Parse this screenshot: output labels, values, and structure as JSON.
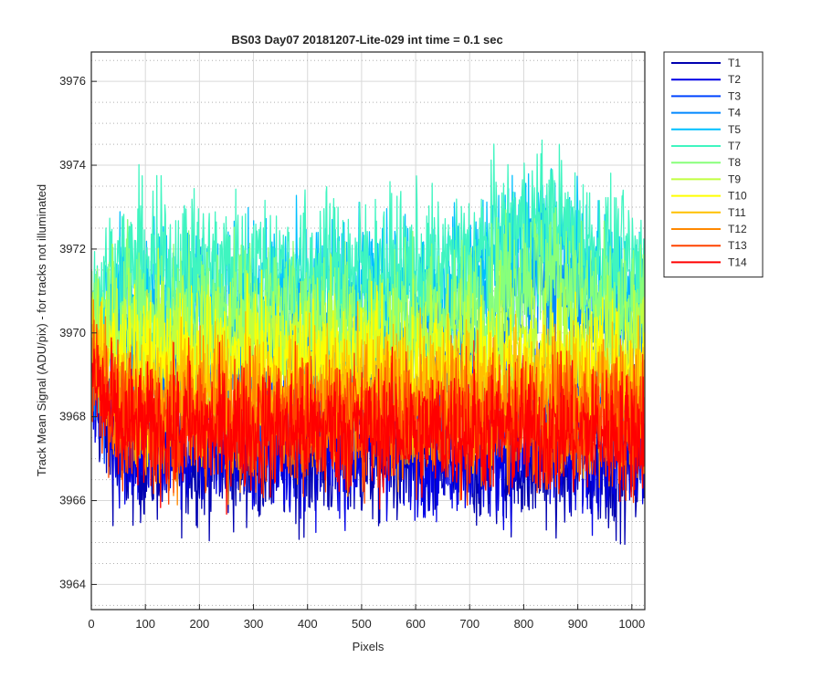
{
  "chart_data": {
    "type": "line",
    "title": "BS03 Day07 20181207-Lite-029 int time = 0.1 sec",
    "xlabel": "Pixels",
    "ylabel": "Track Mean Signal (ADU/pix) - for tracks not illuminated",
    "xlim": [
      0,
      1024
    ],
    "ylim": [
      3963.4,
      3976.7
    ],
    "x_ticks": [
      "0",
      "100",
      "200",
      "300",
      "400",
      "500",
      "600",
      "700",
      "800",
      "900",
      "1000"
    ],
    "x_tick_values": [
      0,
      100,
      200,
      300,
      400,
      500,
      600,
      700,
      800,
      900,
      1000
    ],
    "y_ticks": [
      "3964",
      "3966",
      "3968",
      "3970",
      "3972",
      "3974",
      "3976"
    ],
    "y_tick_values": [
      3964,
      3966,
      3968,
      3970,
      3972,
      3974,
      3976
    ],
    "grid": true,
    "legend_position": "outside-top-right",
    "samples_per_series": 1024,
    "series": [
      {
        "name": "T1",
        "color": "#0000b0",
        "start": 3968.6,
        "mid": 3967.0,
        "end": 3966.8,
        "noise": 0.75
      },
      {
        "name": "T2",
        "color": "#0000e6",
        "start": 3969.0,
        "mid": 3967.3,
        "end": 3967.0,
        "noise": 0.75
      },
      {
        "name": "T3",
        "color": "#0044ff",
        "start": 3969.4,
        "mid": 3968.6,
        "end": 3968.8,
        "noise": 0.8
      },
      {
        "name": "T4",
        "color": "#0088ff",
        "start": 3969.8,
        "mid": 3969.6,
        "end": 3970.2,
        "noise": 0.8
      },
      {
        "name": "T5",
        "color": "#00c0ff",
        "start": 3970.2,
        "mid": 3971.0,
        "end": 3971.0,
        "noise": 0.85
      },
      {
        "name": "T7",
        "color": "#3ff5c0",
        "start": 3970.6,
        "mid": 3971.6,
        "end": 3971.4,
        "noise": 0.9
      },
      {
        "name": "T8",
        "color": "#88ff7a",
        "start": 3970.4,
        "mid": 3970.6,
        "end": 3970.2,
        "noise": 0.85
      },
      {
        "name": "T9",
        "color": "#c0ff40",
        "start": 3970.2,
        "mid": 3969.8,
        "end": 3969.6,
        "noise": 0.8
      },
      {
        "name": "T10",
        "color": "#ffff00",
        "start": 3970.0,
        "mid": 3969.2,
        "end": 3969.0,
        "noise": 0.8
      },
      {
        "name": "T11",
        "color": "#ffc000",
        "start": 3969.8,
        "mid": 3968.6,
        "end": 3968.6,
        "noise": 0.8
      },
      {
        "name": "T12",
        "color": "#ff8800",
        "start": 3969.6,
        "mid": 3968.0,
        "end": 3968.1,
        "noise": 0.8
      },
      {
        "name": "T13",
        "color": "#ff4400",
        "start": 3969.3,
        "mid": 3967.9,
        "end": 3967.9,
        "noise": 0.8
      },
      {
        "name": "T14",
        "color": "#ff0000",
        "start": 3969.0,
        "mid": 3967.7,
        "end": 3967.6,
        "noise": 0.75
      }
    ]
  }
}
